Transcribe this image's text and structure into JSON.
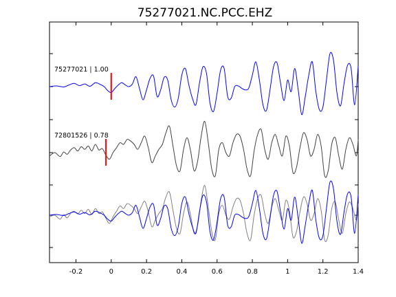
{
  "chart_data": {
    "type": "line",
    "title": "75277021.NC.PCC.EHZ",
    "xlabel": "",
    "ylabel": "",
    "xlim": [
      -0.35,
      1.4
    ],
    "x_ticks": [
      -0.2,
      0,
      0.2,
      0.4,
      0.6,
      0.8,
      1,
      1.2,
      1.4
    ],
    "x_tick_labels": [
      "-0.2",
      "0",
      "0.2",
      "0.4",
      "0.6",
      "0.8",
      "1",
      "1.2",
      "1.4"
    ],
    "grid": false,
    "y_tick_labels_shown": false,
    "panels": [
      {
        "id": "master",
        "label": "75277021 | 1.00",
        "line_color": "#0000ff",
        "pick_time": 0.0,
        "pick_color": "#ff0000"
      },
      {
        "id": "correlated",
        "label": "72801526 | 0.78",
        "line_color": "#404040",
        "pick_time": -0.03,
        "pick_color": "#ff0000"
      },
      {
        "id": "overlay",
        "label": "",
        "line_colors": [
          "#808080",
          "#0000ff"
        ]
      }
    ],
    "series": [
      {
        "panel": "master",
        "x": [
          -0.35,
          -0.31,
          -0.27,
          -0.24,
          -0.21,
          -0.18,
          -0.15,
          -0.12,
          -0.09,
          -0.06,
          -0.04,
          -0.02,
          0.0,
          0.02,
          0.04,
          0.06,
          0.08,
          0.1,
          0.12,
          0.14,
          0.16,
          0.18,
          0.2,
          0.22,
          0.24,
          0.26,
          0.28,
          0.3,
          0.32,
          0.34,
          0.36,
          0.38,
          0.4,
          0.42,
          0.44,
          0.46,
          0.48,
          0.5,
          0.52,
          0.54,
          0.56,
          0.58,
          0.6,
          0.62,
          0.64,
          0.66,
          0.68,
          0.7,
          0.72,
          0.74,
          0.76,
          0.78,
          0.8,
          0.82,
          0.84,
          0.86,
          0.88,
          0.9,
          0.92,
          0.94,
          0.96,
          0.98,
          1.0,
          1.02,
          1.04,
          1.06,
          1.08,
          1.1,
          1.12,
          1.14,
          1.16,
          1.18,
          1.2,
          1.22,
          1.24,
          1.26,
          1.28,
          1.3,
          1.32,
          1.34,
          1.36,
          1.38,
          1.4
        ],
        "y": [
          0,
          0.02,
          -0.01,
          0.05,
          0.1,
          0.03,
          0.08,
          0.01,
          0.12,
          0.06,
          0.0,
          -0.12,
          -0.18,
          -0.06,
          0.05,
          0.12,
          0.05,
          0.0,
          0.08,
          0.3,
          -0.05,
          -0.4,
          -0.1,
          0.25,
          0.32,
          -0.3,
          -0.1,
          0.28,
          0.2,
          -0.4,
          -0.62,
          -0.35,
          0.35,
          0.55,
          0.05,
          -0.35,
          -0.55,
          0.1,
          0.6,
          0.4,
          -0.5,
          -0.75,
          -0.2,
          0.5,
          0.55,
          -0.3,
          -0.35,
          0.0,
          0.02,
          -0.05,
          -0.1,
          -0.04,
          0.35,
          0.75,
          0.2,
          -0.55,
          -0.72,
          -0.1,
          0.6,
          0.72,
          0.1,
          -0.42,
          0.2,
          -0.15,
          0.55,
          -0.1,
          -0.85,
          -0.3,
          0.35,
          0.75,
          -0.15,
          -0.7,
          -0.62,
          0.2,
          1.0,
          0.8,
          -0.2,
          -0.58,
          0.1,
          0.65,
          0.55,
          -0.55,
          0.62
        ]
      },
      {
        "panel": "correlated",
        "x": [
          -0.35,
          -0.32,
          -0.29,
          -0.27,
          -0.25,
          -0.23,
          -0.21,
          -0.19,
          -0.17,
          -0.15,
          -0.13,
          -0.11,
          -0.09,
          -0.07,
          -0.05,
          -0.03,
          -0.01,
          0.01,
          0.03,
          0.05,
          0.07,
          0.09,
          0.11,
          0.13,
          0.15,
          0.17,
          0.19,
          0.21,
          0.23,
          0.25,
          0.27,
          0.29,
          0.31,
          0.33,
          0.35,
          0.37,
          0.39,
          0.41,
          0.43,
          0.45,
          0.47,
          0.49,
          0.51,
          0.53,
          0.55,
          0.57,
          0.59,
          0.61,
          0.63,
          0.65,
          0.67,
          0.69,
          0.71,
          0.73,
          0.75,
          0.77,
          0.79,
          0.81,
          0.83,
          0.85,
          0.87,
          0.89,
          0.91,
          0.93,
          0.95,
          0.97,
          0.99,
          1.01,
          1.03,
          1.05,
          1.07,
          1.09,
          1.11,
          1.13,
          1.15,
          1.17,
          1.19,
          1.21,
          1.23,
          1.25,
          1.27,
          1.29,
          1.31,
          1.33,
          1.35,
          1.37,
          1.39,
          1.4
        ],
        "y": [
          -0.1,
          0.0,
          -0.12,
          0.02,
          -0.05,
          0.08,
          0.15,
          0.05,
          0.18,
          0.1,
          0.2,
          0.05,
          0.25,
          0.08,
          0.12,
          -0.08,
          -0.2,
          0.0,
          0.15,
          0.3,
          0.25,
          0.4,
          0.35,
          0.25,
          0.1,
          0.3,
          0.5,
          0.15,
          -0.3,
          -0.1,
          0.1,
          0.25,
          0.6,
          0.8,
          0.2,
          -0.4,
          -0.55,
          0.1,
          0.45,
          0.05,
          -0.55,
          -0.25,
          0.5,
          0.95,
          0.3,
          -0.5,
          -0.7,
          0.1,
          0.3,
          0.0,
          -0.1,
          0.3,
          0.55,
          0.5,
          0.1,
          -0.5,
          -0.7,
          0.05,
          0.55,
          0.7,
          0.1,
          -0.2,
          0.3,
          0.55,
          0.2,
          -0.1,
          0.5,
          0.2,
          -0.6,
          -0.45,
          0.15,
          0.6,
          0.4,
          -0.1,
          0.1,
          0.55,
          0.2,
          -0.7,
          -0.55,
          0.25,
          0.45,
          -0.1,
          -0.5,
          0.1,
          0.45,
          0.25,
          -0.1,
          0.4
        ]
      },
      {
        "panel": "overlay",
        "name": "72801526",
        "x": [
          -0.35,
          -0.32,
          -0.29,
          -0.27,
          -0.25,
          -0.23,
          -0.21,
          -0.19,
          -0.17,
          -0.15,
          -0.13,
          -0.11,
          -0.09,
          -0.07,
          -0.05,
          -0.03,
          -0.01,
          0.01,
          0.03,
          0.05,
          0.07,
          0.09,
          0.11,
          0.13,
          0.15,
          0.17,
          0.19,
          0.21,
          0.23,
          0.25,
          0.27,
          0.29,
          0.31,
          0.33,
          0.35,
          0.37,
          0.39,
          0.41,
          0.43,
          0.45,
          0.47,
          0.49,
          0.51,
          0.53,
          0.55,
          0.57,
          0.59,
          0.61,
          0.63,
          0.65,
          0.67,
          0.69,
          0.71,
          0.73,
          0.75,
          0.77,
          0.79,
          0.81,
          0.83,
          0.85,
          0.87,
          0.89,
          0.91,
          0.93,
          0.95,
          0.97,
          0.99,
          1.01,
          1.03,
          1.05,
          1.07,
          1.09,
          1.11,
          1.13,
          1.15,
          1.17,
          1.19,
          1.21,
          1.23,
          1.25,
          1.27,
          1.29,
          1.31,
          1.33,
          1.35,
          1.37,
          1.39,
          1.4
        ],
        "y": [
          -0.05,
          0.0,
          -0.12,
          0.02,
          -0.08,
          0.06,
          0.12,
          0.04,
          0.15,
          0.05,
          0.18,
          0.02,
          0.2,
          0.05,
          0.1,
          -0.1,
          -0.25,
          -0.05,
          0.12,
          0.28,
          0.2,
          0.35,
          0.3,
          0.2,
          0.05,
          0.25,
          0.42,
          0.1,
          -0.35,
          -0.15,
          0.05,
          0.2,
          0.55,
          0.7,
          0.15,
          -0.4,
          -0.55,
          0.05,
          0.4,
          0.0,
          -0.55,
          -0.3,
          0.45,
          0.9,
          0.25,
          -0.5,
          -0.75,
          0.05,
          0.3,
          0.0,
          -0.12,
          0.25,
          0.5,
          0.45,
          0.05,
          -0.55,
          -0.75,
          0.0,
          0.5,
          0.6,
          0.05,
          -0.25,
          0.25,
          0.5,
          0.15,
          -0.15,
          0.45,
          0.15,
          -0.65,
          -0.5,
          0.1,
          0.55,
          0.35,
          -0.15,
          0.05,
          0.5,
          0.15,
          -0.75,
          -0.6,
          0.2,
          0.4,
          -0.15,
          -0.55,
          0.05,
          0.4,
          0.2,
          -0.15,
          0.35
        ]
      },
      {
        "panel": "overlay",
        "name": "75277021",
        "x": [
          -0.35,
          -0.31,
          -0.27,
          -0.24,
          -0.21,
          -0.18,
          -0.15,
          -0.12,
          -0.09,
          -0.06,
          -0.04,
          -0.02,
          0.0,
          0.02,
          0.04,
          0.06,
          0.08,
          0.1,
          0.12,
          0.14,
          0.16,
          0.18,
          0.2,
          0.22,
          0.24,
          0.26,
          0.28,
          0.3,
          0.32,
          0.34,
          0.36,
          0.38,
          0.4,
          0.42,
          0.44,
          0.46,
          0.48,
          0.5,
          0.52,
          0.54,
          0.56,
          0.58,
          0.6,
          0.62,
          0.64,
          0.66,
          0.68,
          0.7,
          0.72,
          0.74,
          0.76,
          0.78,
          0.8,
          0.82,
          0.84,
          0.86,
          0.88,
          0.9,
          0.92,
          0.94,
          0.96,
          0.98,
          1.0,
          1.02,
          1.04,
          1.06,
          1.08,
          1.1,
          1.12,
          1.14,
          1.16,
          1.18,
          1.2,
          1.22,
          1.24,
          1.26,
          1.28,
          1.3,
          1.32,
          1.34,
          1.36,
          1.38,
          1.4
        ],
        "y": [
          0,
          0.02,
          -0.01,
          0.05,
          0.1,
          0.03,
          0.08,
          0.01,
          0.12,
          0.06,
          0.0,
          -0.12,
          -0.18,
          -0.06,
          0.05,
          0.12,
          0.05,
          0.0,
          0.08,
          0.3,
          -0.05,
          -0.4,
          -0.1,
          0.25,
          0.32,
          -0.3,
          -0.1,
          0.28,
          0.2,
          -0.4,
          -0.62,
          -0.35,
          0.35,
          0.55,
          0.05,
          -0.35,
          -0.55,
          0.1,
          0.6,
          0.4,
          -0.5,
          -0.75,
          -0.2,
          0.5,
          0.55,
          -0.3,
          -0.35,
          0.0,
          0.02,
          -0.05,
          -0.1,
          -0.04,
          0.35,
          0.75,
          0.2,
          -0.55,
          -0.72,
          -0.1,
          0.6,
          0.72,
          0.1,
          -0.42,
          0.2,
          -0.15,
          0.55,
          -0.1,
          -0.85,
          -0.3,
          0.35,
          0.75,
          -0.15,
          -0.7,
          -0.62,
          0.2,
          1.0,
          0.8,
          -0.2,
          -0.58,
          0.1,
          0.65,
          0.55,
          -0.55,
          0.62
        ]
      }
    ]
  }
}
